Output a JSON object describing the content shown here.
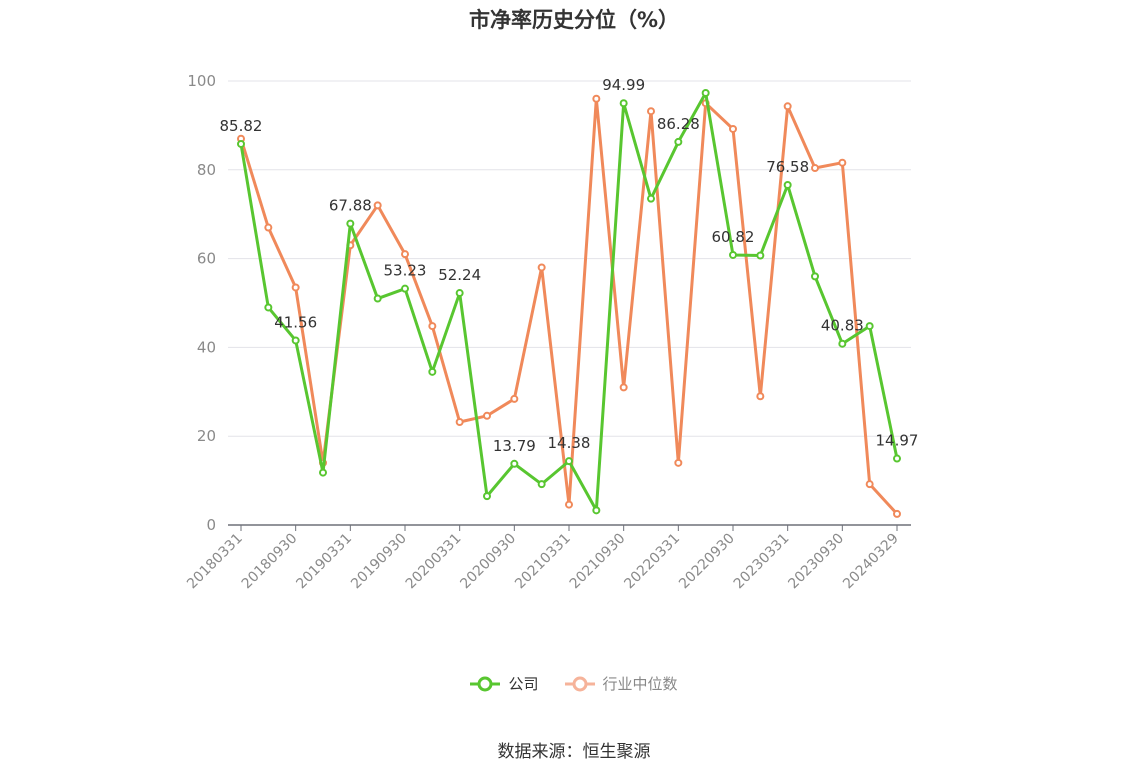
{
  "title": "市净率历史分位（%）",
  "source": "数据来源：恒生聚源",
  "colors": {
    "company": "#58c630",
    "industry": "#f0895a",
    "industry_legend": "#f6b39a",
    "grid": "#e3e3e8",
    "axis": "#6e7079",
    "tick_label": "#8a8a8a",
    "data_label": "#333333"
  },
  "chart_data": {
    "type": "line",
    "title": "市净率历史分位（%）",
    "xlabel": "",
    "ylabel": "",
    "ylim": [
      0,
      100
    ],
    "yticks": [
      0,
      20,
      40,
      60,
      80,
      100
    ],
    "grid": true,
    "legend_position": "bottom-center",
    "x": [
      "20180331",
      "20180630",
      "20180930",
      "20181231",
      "20190331",
      "20190630",
      "20190930",
      "20191231",
      "20200331",
      "20200630",
      "20200930",
      "20201231",
      "20210331",
      "20210630",
      "20210930",
      "20211231",
      "20220331",
      "20220630",
      "20220930",
      "20221231",
      "20230331",
      "20230630",
      "20230930",
      "20231231",
      "20240329"
    ],
    "x_tick_labels": [
      "20180331",
      "20180930",
      "20190331",
      "20190930",
      "20200331",
      "20200930",
      "20210331",
      "20210930",
      "20220331",
      "20220930",
      "20230331",
      "20230930",
      "20240329"
    ],
    "series": [
      {
        "name": "公司",
        "values": [
          85.82,
          49.0,
          41.56,
          11.8,
          67.88,
          51.0,
          53.23,
          34.5,
          52.24,
          6.5,
          13.79,
          9.2,
          14.38,
          3.3,
          94.99,
          73.5,
          86.28,
          97.3,
          60.82,
          60.7,
          76.58,
          56.0,
          40.83,
          44.8,
          14.97
        ],
        "labels": [
          "85.82",
          "",
          "41.56",
          "",
          "67.88",
          "",
          "53.23",
          "",
          "52.24",
          "",
          "13.79",
          "",
          "14.38",
          "",
          "94.99",
          "",
          "86.28",
          "",
          "60.82",
          "",
          "76.58",
          "",
          "40.83",
          "",
          "14.97"
        ]
      },
      {
        "name": "行业中位数",
        "values": [
          87.0,
          67.0,
          53.5,
          14.0,
          63.0,
          72.0,
          61.0,
          44.8,
          23.2,
          24.6,
          28.4,
          58.0,
          4.6,
          96.0,
          31.0,
          93.2,
          14.0,
          95.0,
          89.2,
          29.0,
          94.3,
          80.4,
          81.6,
          9.2,
          2.5
        ]
      }
    ]
  }
}
